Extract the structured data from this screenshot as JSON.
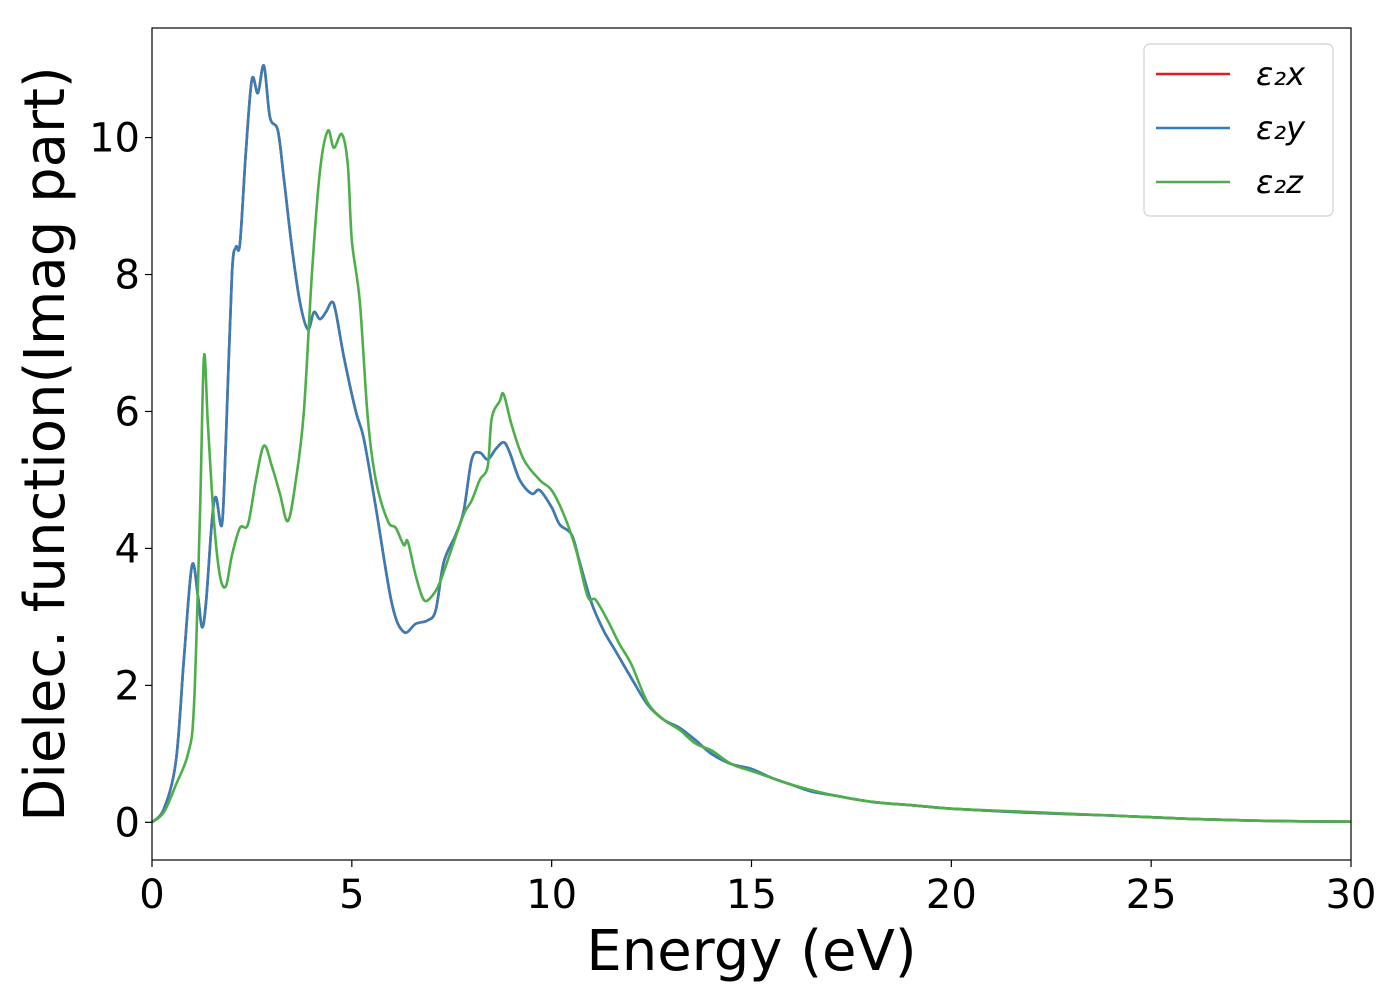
{
  "chart_data": {
    "type": "line",
    "xlabel": "Energy (eV)",
    "ylabel": "Dielec. function(Imag part)",
    "xlim": [
      0,
      30
    ],
    "ylim": [
      -0.55,
      11.6
    ],
    "xticks": [
      0,
      5,
      10,
      15,
      20,
      25,
      30
    ],
    "xtick_labels": [
      "0",
      "5",
      "10",
      "15",
      "20",
      "25",
      "30"
    ],
    "yticks": [
      0,
      2,
      4,
      6,
      8,
      10
    ],
    "ytick_labels": [
      "0",
      "2",
      "4",
      "6",
      "8",
      "10"
    ],
    "grid": false,
    "legend_position": "top-right",
    "series": [
      {
        "name": "ε₂x",
        "color": "#e41a1c",
        "points": [
          [
            0,
            0
          ],
          [
            0.3,
            0.2
          ],
          [
            0.6,
            0.9
          ],
          [
            0.8,
            2.4
          ],
          [
            1.0,
            3.75
          ],
          [
            1.15,
            3.3
          ],
          [
            1.25,
            2.85
          ],
          [
            1.35,
            3.2
          ],
          [
            1.5,
            4.4
          ],
          [
            1.6,
            4.75
          ],
          [
            1.75,
            4.35
          ],
          [
            1.85,
            5.6
          ],
          [
            2.0,
            8.0
          ],
          [
            2.1,
            8.4
          ],
          [
            2.2,
            8.45
          ],
          [
            2.35,
            9.8
          ],
          [
            2.5,
            10.85
          ],
          [
            2.65,
            10.65
          ],
          [
            2.8,
            11.05
          ],
          [
            2.95,
            10.3
          ],
          [
            3.15,
            10.1
          ],
          [
            3.3,
            9.4
          ],
          [
            3.5,
            8.4
          ],
          [
            3.7,
            7.6
          ],
          [
            3.9,
            7.2
          ],
          [
            4.05,
            7.45
          ],
          [
            4.2,
            7.35
          ],
          [
            4.35,
            7.45
          ],
          [
            4.5,
            7.6
          ],
          [
            4.6,
            7.45
          ],
          [
            4.8,
            6.8
          ],
          [
            5.1,
            6.0
          ],
          [
            5.3,
            5.6
          ],
          [
            5.6,
            4.6
          ],
          [
            6.0,
            3.2
          ],
          [
            6.3,
            2.78
          ],
          [
            6.6,
            2.9
          ],
          [
            6.9,
            2.95
          ],
          [
            7.1,
            3.1
          ],
          [
            7.3,
            3.8
          ],
          [
            7.6,
            4.2
          ],
          [
            7.8,
            4.55
          ],
          [
            8.0,
            5.3
          ],
          [
            8.2,
            5.4
          ],
          [
            8.4,
            5.3
          ],
          [
            8.6,
            5.45
          ],
          [
            8.8,
            5.55
          ],
          [
            8.95,
            5.4
          ],
          [
            9.2,
            5.0
          ],
          [
            9.5,
            4.8
          ],
          [
            9.7,
            4.85
          ],
          [
            10.0,
            4.6
          ],
          [
            10.2,
            4.35
          ],
          [
            10.5,
            4.2
          ],
          [
            10.7,
            3.8
          ],
          [
            11.0,
            3.2
          ],
          [
            11.3,
            2.8
          ],
          [
            11.6,
            2.5
          ],
          [
            12.0,
            2.1
          ],
          [
            12.4,
            1.72
          ],
          [
            12.8,
            1.5
          ],
          [
            13.2,
            1.38
          ],
          [
            13.6,
            1.2
          ],
          [
            14.0,
            1.0
          ],
          [
            14.5,
            0.85
          ],
          [
            15.0,
            0.78
          ],
          [
            15.5,
            0.65
          ],
          [
            16.0,
            0.55
          ],
          [
            16.5,
            0.45
          ],
          [
            17.0,
            0.4
          ],
          [
            18.0,
            0.3
          ],
          [
            19.0,
            0.25
          ],
          [
            20.0,
            0.2
          ],
          [
            22.0,
            0.14
          ],
          [
            24.0,
            0.1
          ],
          [
            26.0,
            0.05
          ],
          [
            28.0,
            0.02
          ],
          [
            30.0,
            0.01
          ]
        ]
      },
      {
        "name": "ε₂y",
        "color": "#377eb8",
        "points": [
          [
            0,
            0
          ],
          [
            0.3,
            0.2
          ],
          [
            0.6,
            0.9
          ],
          [
            0.8,
            2.4
          ],
          [
            1.0,
            3.75
          ],
          [
            1.15,
            3.3
          ],
          [
            1.25,
            2.85
          ],
          [
            1.35,
            3.2
          ],
          [
            1.5,
            4.4
          ],
          [
            1.6,
            4.75
          ],
          [
            1.75,
            4.35
          ],
          [
            1.85,
            5.6
          ],
          [
            2.0,
            8.0
          ],
          [
            2.1,
            8.4
          ],
          [
            2.2,
            8.45
          ],
          [
            2.35,
            9.8
          ],
          [
            2.5,
            10.85
          ],
          [
            2.65,
            10.65
          ],
          [
            2.8,
            11.05
          ],
          [
            2.95,
            10.3
          ],
          [
            3.15,
            10.1
          ],
          [
            3.3,
            9.4
          ],
          [
            3.5,
            8.4
          ],
          [
            3.7,
            7.6
          ],
          [
            3.9,
            7.2
          ],
          [
            4.05,
            7.45
          ],
          [
            4.2,
            7.35
          ],
          [
            4.35,
            7.45
          ],
          [
            4.5,
            7.6
          ],
          [
            4.6,
            7.45
          ],
          [
            4.8,
            6.8
          ],
          [
            5.1,
            6.0
          ],
          [
            5.3,
            5.6
          ],
          [
            5.6,
            4.6
          ],
          [
            6.0,
            3.2
          ],
          [
            6.3,
            2.78
          ],
          [
            6.6,
            2.9
          ],
          [
            6.9,
            2.95
          ],
          [
            7.1,
            3.1
          ],
          [
            7.3,
            3.8
          ],
          [
            7.6,
            4.2
          ],
          [
            7.8,
            4.55
          ],
          [
            8.0,
            5.3
          ],
          [
            8.2,
            5.4
          ],
          [
            8.4,
            5.3
          ],
          [
            8.6,
            5.45
          ],
          [
            8.8,
            5.55
          ],
          [
            8.95,
            5.4
          ],
          [
            9.2,
            5.0
          ],
          [
            9.5,
            4.8
          ],
          [
            9.7,
            4.85
          ],
          [
            10.0,
            4.6
          ],
          [
            10.2,
            4.35
          ],
          [
            10.5,
            4.2
          ],
          [
            10.7,
            3.8
          ],
          [
            11.0,
            3.2
          ],
          [
            11.3,
            2.8
          ],
          [
            11.6,
            2.5
          ],
          [
            12.0,
            2.1
          ],
          [
            12.4,
            1.72
          ],
          [
            12.8,
            1.5
          ],
          [
            13.2,
            1.38
          ],
          [
            13.6,
            1.2
          ],
          [
            14.0,
            1.0
          ],
          [
            14.5,
            0.85
          ],
          [
            15.0,
            0.78
          ],
          [
            15.5,
            0.65
          ],
          [
            16.0,
            0.55
          ],
          [
            16.5,
            0.45
          ],
          [
            17.0,
            0.4
          ],
          [
            18.0,
            0.3
          ],
          [
            19.0,
            0.25
          ],
          [
            20.0,
            0.2
          ],
          [
            22.0,
            0.14
          ],
          [
            24.0,
            0.1
          ],
          [
            26.0,
            0.05
          ],
          [
            28.0,
            0.02
          ],
          [
            30.0,
            0.01
          ]
        ]
      },
      {
        "name": "ε₂z",
        "color": "#4daf4a",
        "points": [
          [
            0,
            0
          ],
          [
            0.3,
            0.15
          ],
          [
            0.6,
            0.55
          ],
          [
            0.9,
            1.0
          ],
          [
            1.05,
            1.7
          ],
          [
            1.2,
            4.5
          ],
          [
            1.3,
            6.8
          ],
          [
            1.4,
            5.8
          ],
          [
            1.55,
            4.4
          ],
          [
            1.7,
            3.6
          ],
          [
            1.85,
            3.45
          ],
          [
            2.0,
            3.9
          ],
          [
            2.2,
            4.3
          ],
          [
            2.4,
            4.35
          ],
          [
            2.6,
            5.0
          ],
          [
            2.8,
            5.5
          ],
          [
            3.0,
            5.2
          ],
          [
            3.2,
            4.8
          ],
          [
            3.4,
            4.4
          ],
          [
            3.6,
            5.0
          ],
          [
            3.8,
            6.0
          ],
          [
            4.0,
            8.0
          ],
          [
            4.2,
            9.5
          ],
          [
            4.4,
            10.1
          ],
          [
            4.55,
            9.85
          ],
          [
            4.75,
            10.05
          ],
          [
            4.9,
            9.6
          ],
          [
            5.0,
            8.5
          ],
          [
            5.2,
            7.6
          ],
          [
            5.4,
            5.9
          ],
          [
            5.6,
            5.0
          ],
          [
            5.9,
            4.4
          ],
          [
            6.1,
            4.3
          ],
          [
            6.3,
            4.05
          ],
          [
            6.4,
            4.1
          ],
          [
            6.6,
            3.6
          ],
          [
            6.8,
            3.25
          ],
          [
            7.0,
            3.3
          ],
          [
            7.2,
            3.5
          ],
          [
            7.5,
            4.0
          ],
          [
            7.8,
            4.5
          ],
          [
            8.0,
            4.7
          ],
          [
            8.2,
            5.0
          ],
          [
            8.4,
            5.2
          ],
          [
            8.5,
            5.9
          ],
          [
            8.7,
            6.15
          ],
          [
            8.8,
            6.25
          ],
          [
            9.0,
            5.8
          ],
          [
            9.3,
            5.3
          ],
          [
            9.7,
            5.0
          ],
          [
            10.0,
            4.85
          ],
          [
            10.3,
            4.5
          ],
          [
            10.6,
            4.0
          ],
          [
            10.9,
            3.3
          ],
          [
            11.1,
            3.25
          ],
          [
            11.4,
            2.95
          ],
          [
            11.7,
            2.6
          ],
          [
            12.0,
            2.3
          ],
          [
            12.4,
            1.75
          ],
          [
            12.8,
            1.5
          ],
          [
            13.2,
            1.35
          ],
          [
            13.6,
            1.15
          ],
          [
            14.0,
            1.05
          ],
          [
            14.5,
            0.85
          ],
          [
            15.0,
            0.75
          ],
          [
            15.5,
            0.65
          ],
          [
            16.0,
            0.55
          ],
          [
            17.0,
            0.4
          ],
          [
            18.0,
            0.3
          ],
          [
            19.0,
            0.25
          ],
          [
            20.0,
            0.2
          ],
          [
            22.0,
            0.15
          ],
          [
            24.0,
            0.1
          ],
          [
            26.0,
            0.05
          ],
          [
            28.0,
            0.02
          ],
          [
            30.0,
            0.01
          ]
        ]
      }
    ]
  }
}
